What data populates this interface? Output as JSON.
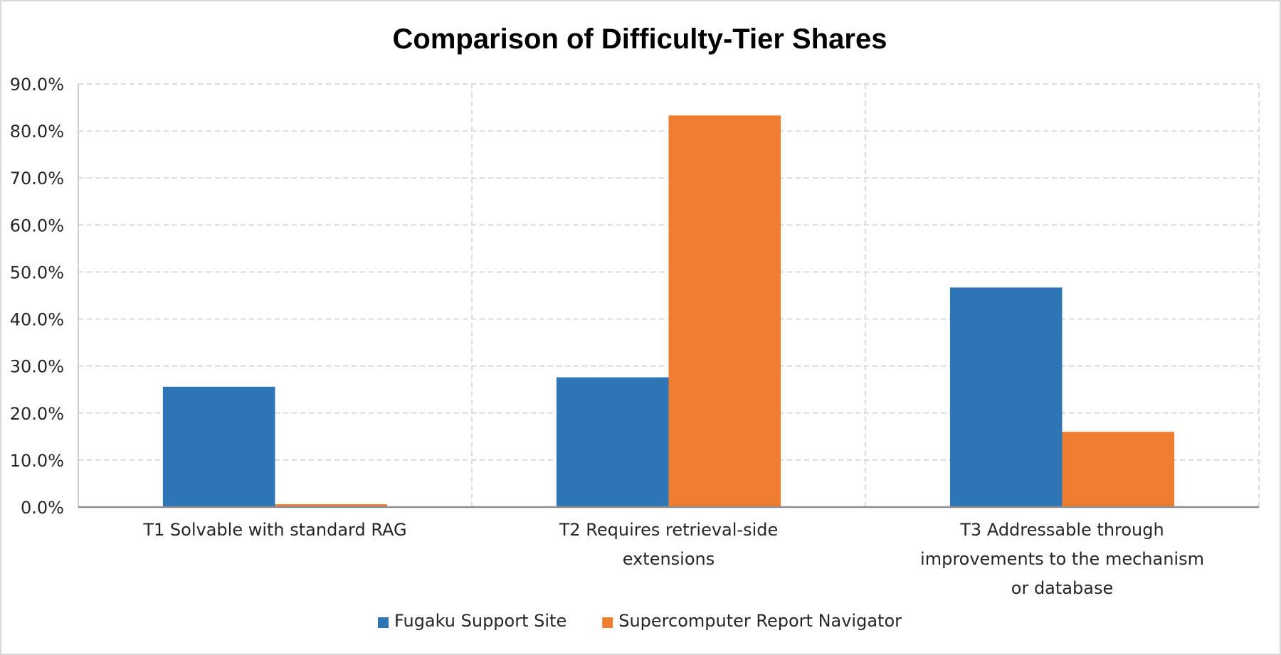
{
  "chart_data": {
    "type": "bar",
    "title": "Comparison of Difficulty-Tier Shares",
    "xlabel": "",
    "ylabel": "",
    "categories": [
      [
        "T1 Solvable with standard RAG"
      ],
      [
        "T2 Requires retrieval-side",
        "extensions"
      ],
      [
        "T3 Addressable through",
        "improvements to the mechanism",
        "or database"
      ]
    ],
    "series": [
      {
        "name": "Fugaku Support Site",
        "values": [
          25.6,
          27.6,
          46.7
        ],
        "color": "#2E75B6"
      },
      {
        "name": "Supercomputer Report Navigator",
        "values": [
          0.6,
          83.3,
          16.0
        ],
        "color": "#ED7D31"
      }
    ],
    "ylim": [
      0,
      90
    ],
    "yticks": [
      0,
      10,
      20,
      30,
      40,
      50,
      60,
      70,
      80,
      90
    ],
    "ytick_labels": [
      "0.0%",
      "10.0%",
      "20.0%",
      "30.0%",
      "40.0%",
      "50.0%",
      "60.0%",
      "70.0%",
      "80.0%",
      "90.0%"
    ],
    "grid": true,
    "legend_position": "bottom"
  }
}
